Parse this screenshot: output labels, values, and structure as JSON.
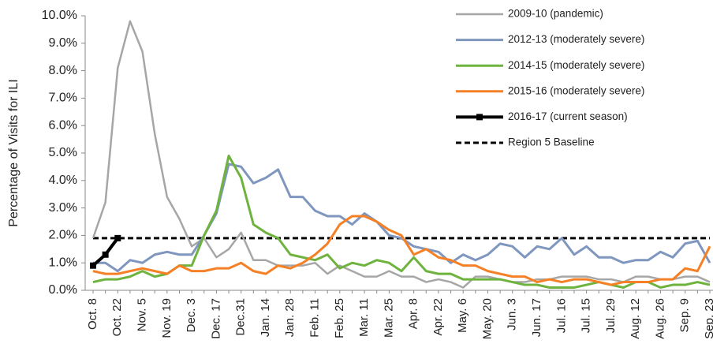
{
  "chart_data": {
    "type": "line",
    "y_label": "Percentage of Visits for ILI",
    "categories": [
      "Oct. 8",
      null,
      "Oct. 22",
      null,
      "Nov. 5",
      null,
      "Nov. 19",
      null,
      "Dec. 3",
      null,
      "Dec. 17",
      null,
      "Dec.31",
      null,
      "Jan. 14",
      null,
      "Jan. 28",
      null,
      "Feb. 11",
      null,
      "Feb. 25",
      null,
      "Mar. 11",
      null,
      "Mar. 25",
      null,
      "Apr. 8",
      null,
      "Apr. 22",
      null,
      "May. 6",
      null,
      "May. 20",
      null,
      "Jun. 3",
      null,
      "Jun. 17",
      null,
      "Jul. 16",
      null,
      "Jul. 15",
      null,
      "Jul. 29",
      null,
      "Aug. 12",
      null,
      "Aug. 26",
      null,
      "Sep. 9",
      null,
      "Sep. 23"
    ],
    "series": [
      {
        "name": "2009-10 (pandemic)",
        "color": "#a6a6a6",
        "width": 2.5,
        "values": [
          1.9,
          3.2,
          8.1,
          9.8,
          8.7,
          5.7,
          3.4,
          2.6,
          1.6,
          1.9,
          1.2,
          1.5,
          2.1,
          1.1,
          1.1,
          0.9,
          0.9,
          0.9,
          1.0,
          0.6,
          0.9,
          0.7,
          0.5,
          0.5,
          0.7,
          0.5,
          0.5,
          0.3,
          0.4,
          0.3,
          0.1,
          0.5,
          0.5,
          0.4,
          0.3,
          0.3,
          0.4,
          0.4,
          0.5,
          0.5,
          0.5,
          0.4,
          0.4,
          0.3,
          0.5,
          0.5,
          0.4,
          0.4,
          0.5,
          0.5,
          0.3
        ]
      },
      {
        "name": "2012-13 (moderately severe)",
        "color": "#7f96be",
        "width": 3,
        "values": [
          1.0,
          1.0,
          0.7,
          1.1,
          1.0,
          1.3,
          1.4,
          1.3,
          1.3,
          2.0,
          2.8,
          4.6,
          4.5,
          3.9,
          4.1,
          4.4,
          3.4,
          3.4,
          2.9,
          2.7,
          2.7,
          2.4,
          2.8,
          2.5,
          2.0,
          1.9,
          1.6,
          1.5,
          1.4,
          1.0,
          1.3,
          1.1,
          1.3,
          1.7,
          1.6,
          1.2,
          1.6,
          1.5,
          1.9,
          1.3,
          1.6,
          1.2,
          1.2,
          1.0,
          1.1,
          1.1,
          1.4,
          1.2,
          1.7,
          1.8,
          1.0
        ]
      },
      {
        "name": "2014-15 (moderately severe)",
        "color": "#6fb33f",
        "width": 3,
        "values": [
          0.3,
          0.4,
          0.4,
          0.5,
          0.7,
          0.5,
          0.6,
          0.9,
          0.9,
          2.0,
          2.9,
          4.9,
          4.1,
          2.4,
          2.1,
          1.9,
          1.3,
          1.2,
          1.1,
          1.3,
          0.8,
          1.0,
          0.9,
          1.1,
          1.0,
          0.7,
          1.2,
          0.7,
          0.6,
          0.6,
          0.4,
          0.4,
          0.4,
          0.4,
          0.3,
          0.2,
          0.2,
          0.1,
          0.1,
          0.1,
          0.2,
          0.3,
          0.2,
          0.1,
          0.3,
          0.3,
          0.1,
          0.2,
          0.2,
          0.3,
          0.2
        ]
      },
      {
        "name": "2015-16 (moderately severe)",
        "color": "#f58025",
        "width": 3,
        "values": [
          0.7,
          0.6,
          0.6,
          0.7,
          0.8,
          0.7,
          0.6,
          0.9,
          0.7,
          0.7,
          0.8,
          0.8,
          1.0,
          0.7,
          0.6,
          0.9,
          0.8,
          1.0,
          1.3,
          1.7,
          2.4,
          2.7,
          2.7,
          2.5,
          2.2,
          2.0,
          1.3,
          1.5,
          1.2,
          1.1,
          0.9,
          0.9,
          0.7,
          0.6,
          0.5,
          0.5,
          0.3,
          0.4,
          0.3,
          0.4,
          0.4,
          0.3,
          0.2,
          0.3,
          0.3,
          0.3,
          0.4,
          0.4,
          0.8,
          0.7,
          1.6
        ]
      },
      {
        "name": "2016-17 (current season)",
        "color": "#000000",
        "width": 4,
        "marker": "square",
        "values": [
          0.9,
          1.3,
          1.9,
          null,
          null,
          null,
          null,
          null,
          null,
          null,
          null,
          null,
          null,
          null,
          null,
          null,
          null,
          null,
          null,
          null,
          null,
          null,
          null,
          null,
          null,
          null,
          null,
          null,
          null,
          null,
          null,
          null,
          null,
          null,
          null,
          null,
          null,
          null,
          null,
          null,
          null,
          null,
          null,
          null,
          null,
          null,
          null,
          null,
          null,
          null,
          null
        ]
      }
    ],
    "baseline": {
      "name": "Region 5 Baseline",
      "value": 1.9,
      "color": "#000000"
    },
    "ylim": [
      0,
      10
    ],
    "yticks": [
      {
        "value": 0,
        "label": "0.0%"
      },
      {
        "value": 1,
        "label": "1.0%"
      },
      {
        "value": 2,
        "label": "2.0%"
      },
      {
        "value": 3,
        "label": "3.0%"
      },
      {
        "value": 4,
        "label": "4.0%"
      },
      {
        "value": 5,
        "label": "5.0%"
      },
      {
        "value": 6,
        "label": "6.0%"
      },
      {
        "value": 7,
        "label": "7.0%"
      },
      {
        "value": 8,
        "label": "8.0%"
      },
      {
        "value": 9,
        "label": "9.0%"
      },
      {
        "value": 10,
        "label": "10.0%"
      }
    ]
  }
}
